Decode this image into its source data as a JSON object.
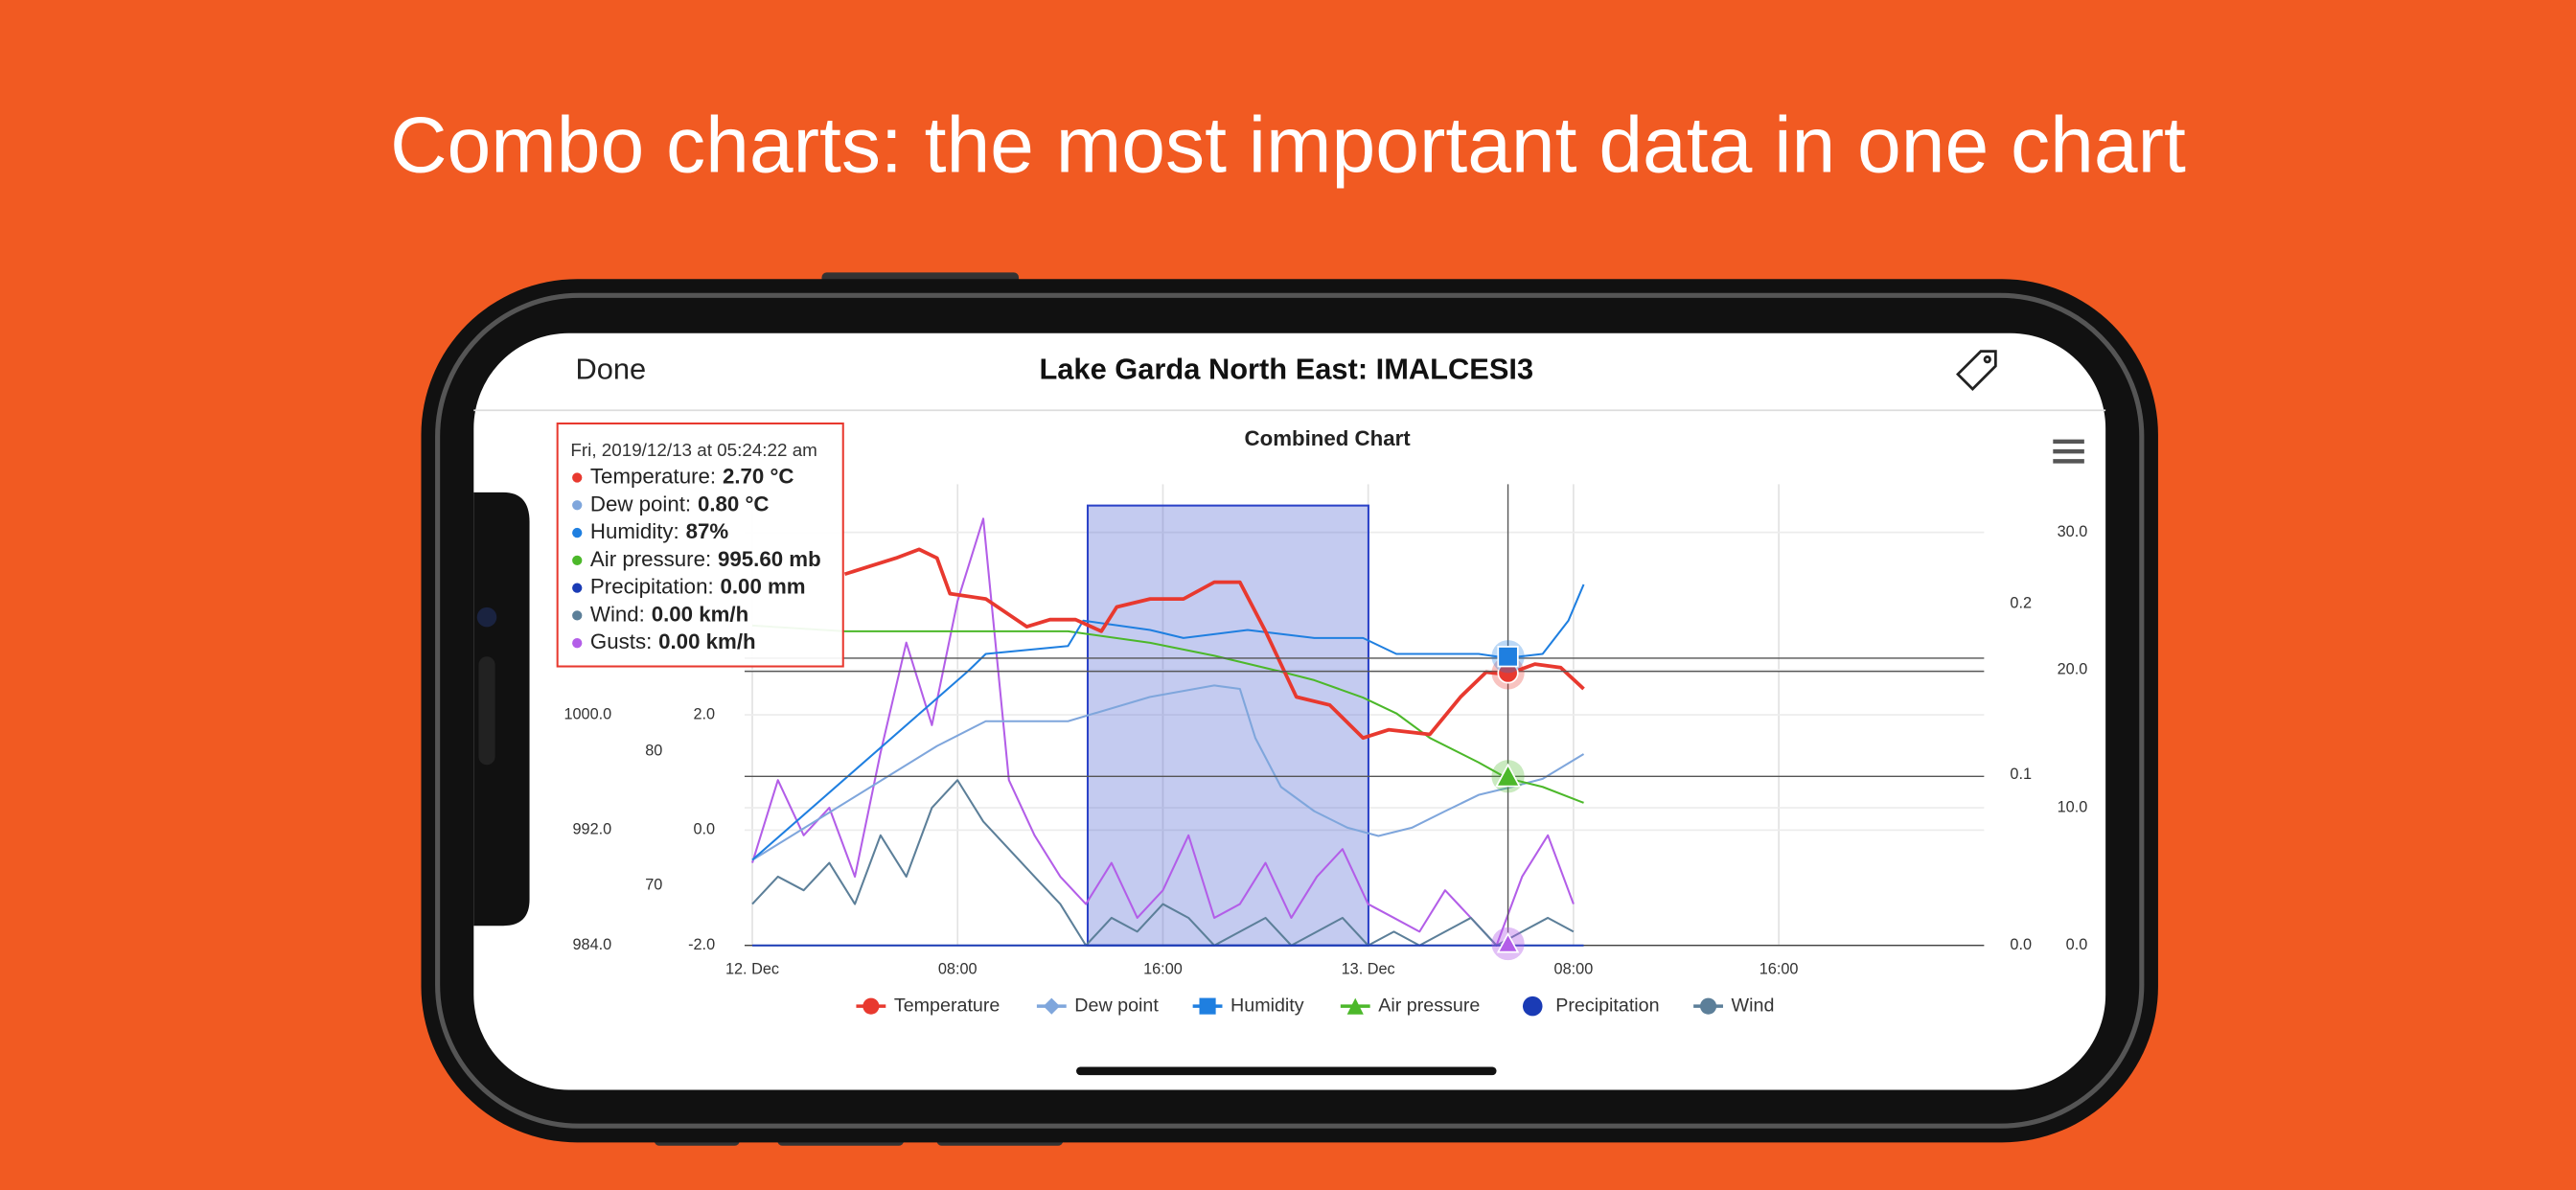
{
  "headline": "Combo charts: the most important data in one chart",
  "nav": {
    "back": "Done",
    "title": "Lake Garda North East: IMALCESI3"
  },
  "tooltip": {
    "title": "Fri, 2019/12/13 at 05:24:22 am",
    "rows": [
      {
        "label": "Temperature:",
        "value": "2.70 °C"
      },
      {
        "label": "Dew point:",
        "value": "0.80 °C"
      },
      {
        "label": "Humidity:",
        "value": "87%"
      },
      {
        "label": "Air pressure:",
        "value": "995.60 mb"
      },
      {
        "label": "Precipitation:",
        "value": "0.00 mm"
      },
      {
        "label": "Wind:",
        "value": "0.00 km/h"
      },
      {
        "label": "Gusts:",
        "value": "0.00 km/h"
      }
    ]
  },
  "chart_data": {
    "type": "line",
    "title": "Combined Chart",
    "grid": true,
    "xlim": [
      -0.3,
      48
    ],
    "xticks": [
      {
        "value": 0,
        "label": "12. Dec"
      },
      {
        "value": 8,
        "label": "08:00"
      },
      {
        "value": 16,
        "label": "16:00"
      },
      {
        "value": 24,
        "label": "13. Dec"
      },
      {
        "value": 32,
        "label": "08:00"
      },
      {
        "value": 40,
        "label": "16:00"
      }
    ],
    "ylim": [
      -2,
      6
    ],
    "yticks": [
      {
        "value": -2,
        "label": "-2.0"
      },
      {
        "value": 0,
        "label": "0.0"
      },
      {
        "value": 2,
        "label": "2.0"
      }
    ],
    "y2lim": [
      984,
      1016
    ],
    "y2ticks": [
      {
        "value": 984,
        "label": "984.0"
      },
      {
        "value": 992,
        "label": "992.0"
      },
      {
        "value": 1000,
        "label": "1000.0"
      }
    ],
    "y3lim": [
      65.5,
      100
    ],
    "y3ticks": [
      70,
      80
    ],
    "y4lim": [
      0,
      0.27
    ],
    "y4ticks": [
      {
        "value": 0,
        "label": "0.0"
      },
      0.1,
      0.2
    ],
    "y5lim": [
      0,
      33.5
    ],
    "y5ticks": [
      {
        "value": 0,
        "label": "0.0"
      },
      {
        "value": 10,
        "label": "10.0"
      },
      {
        "value": 20,
        "label": "20.0"
      },
      {
        "value": 30,
        "label": "30.0"
      }
    ],
    "series": [
      {
        "name": "Temperature",
        "color": "#e8392f",
        "axis": "y",
        "marker": "circle",
        "x": [
          3.6,
          4.6,
          5.6,
          6.5,
          7.2,
          7.7,
          9.1,
          10.7,
          11.6,
          12.6,
          13.6,
          14.2,
          15.5,
          16.8,
          18.0,
          19.0,
          20.0,
          21.2,
          22.5,
          23.8,
          24.8,
          26.4,
          27.6,
          28.6,
          29.4,
          30.5,
          31.5,
          32.4
        ],
        "values": [
          4.44,
          4.58,
          4.72,
          4.87,
          4.72,
          4.1,
          4.01,
          3.53,
          3.65,
          3.65,
          3.45,
          3.87,
          4.01,
          4.01,
          4.3,
          4.3,
          3.45,
          2.31,
          2.17,
          1.6,
          1.74,
          1.66,
          2.31,
          2.74,
          2.7,
          2.88,
          2.82,
          2.45
        ]
      },
      {
        "name": "Dew point",
        "color": "#7fa6dc",
        "axis": "y",
        "marker": "diamond",
        "x": [
          0,
          7.2,
          9.1,
          12.3,
          15.5,
          18.0,
          19.0,
          19.6,
          20.6,
          21.9,
          23.2,
          24.4,
          25.7,
          27.0,
          28.3,
          29.6,
          30.8,
          32.4
        ],
        "values": [
          -0.52,
          1.46,
          1.89,
          1.89,
          2.31,
          2.51,
          2.45,
          1.6,
          0.75,
          0.33,
          0.04,
          -0.1,
          0.04,
          0.33,
          0.61,
          0.75,
          0.89,
          1.32
        ]
      },
      {
        "name": "Humidity",
        "color": "#1f7fe0",
        "axis": "y3",
        "marker": "square",
        "x": [
          0,
          8.4,
          9.1,
          12.3,
          12.9,
          15.5,
          16.8,
          19.3,
          21.9,
          23.8,
          25.1,
          28.3,
          29.4,
          30.8,
          31.8,
          32.4
        ],
        "values": [
          71.9,
          86.0,
          87.3,
          87.9,
          89.8,
          89.1,
          88.5,
          89.1,
          88.5,
          88.5,
          87.3,
          87.3,
          87,
          87.3,
          89.8,
          92.5
        ]
      },
      {
        "name": "Air pressure",
        "color": "#4cb82a",
        "axis": "y2",
        "marker": "triangle",
        "x": [
          0,
          3.6,
          6.5,
          9.1,
          12.3,
          15.5,
          18.0,
          20.6,
          21.9,
          23.8,
          25.1,
          26.4,
          28.3,
          29.4,
          30.8,
          32.4
        ],
        "values": [
          1006.2,
          1005.8,
          1005.8,
          1005.8,
          1005.8,
          1005.0,
          1004.1,
          1003.0,
          1002.4,
          1001.2,
          1000.1,
          998.4,
          996.7,
          995.6,
          995.0,
          993.9
        ]
      },
      {
        "name": "Precipitation",
        "color": "#1a3bb5",
        "axis": "y4",
        "marker": "bigcircle",
        "x": [
          0,
          32.4
        ],
        "values": [
          0,
          0
        ]
      },
      {
        "name": "Wind",
        "color": "#5c7f99",
        "axis": "y5",
        "marker": "circle",
        "x": [
          0,
          1,
          2,
          3,
          4,
          5,
          6,
          7,
          8,
          9,
          10,
          11,
          12,
          13,
          14,
          15,
          16,
          17,
          18,
          19,
          20,
          21,
          22,
          23,
          24,
          25,
          26,
          27,
          28,
          29,
          30,
          31,
          32
        ],
        "values": [
          3,
          5,
          4,
          6,
          3,
          8,
          5,
          10,
          12,
          9,
          7,
          5,
          3,
          0,
          2,
          1,
          3,
          2,
          0,
          1,
          2,
          0,
          1,
          2,
          0,
          1,
          0,
          1,
          2,
          0,
          1,
          2,
          1
        ]
      },
      {
        "name": "Gusts",
        "color": "#b35ee8",
        "axis": "y5",
        "marker": "triangle",
        "legend": false,
        "x": [
          0,
          1,
          2,
          3,
          4,
          5,
          6,
          7,
          8,
          9,
          10,
          11,
          12,
          13,
          14,
          15,
          16,
          17,
          18,
          19,
          20,
          21,
          22,
          23,
          24,
          25,
          26,
          27,
          28,
          29,
          30,
          31,
          32
        ],
        "values": [
          6,
          12,
          8,
          10,
          5,
          14,
          22,
          16,
          25,
          31,
          12,
          8,
          5,
          3,
          6,
          2,
          4,
          8,
          2,
          3,
          6,
          2,
          5,
          7,
          3,
          2,
          1,
          4,
          2,
          0,
          5,
          8,
          3
        ]
      }
    ]
  }
}
